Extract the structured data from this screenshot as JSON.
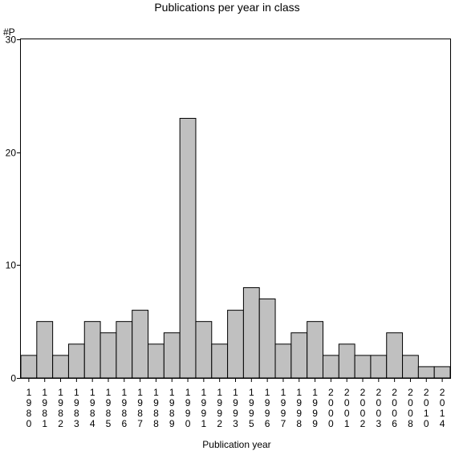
{
  "chart_data": {
    "type": "bar",
    "title": "Publications per year in class",
    "ylabel": "#P",
    "xlabel": "Publication year",
    "ylim": [
      0,
      30
    ],
    "yticks": [
      0,
      10,
      20,
      30
    ],
    "grid": false,
    "categories": [
      "1980",
      "1981",
      "1982",
      "1983",
      "1984",
      "1985",
      "1986",
      "1987",
      "1988",
      "1989",
      "1990",
      "1991",
      "1992",
      "1993",
      "1995",
      "1996",
      "1997",
      "1998",
      "1999",
      "2000",
      "2001",
      "2002",
      "2003",
      "2006",
      "2008",
      "2010",
      "2014"
    ],
    "values": [
      2,
      5,
      2,
      3,
      5,
      4,
      5,
      6,
      3,
      4,
      23,
      5,
      3,
      6,
      8,
      7,
      3,
      4,
      5,
      2,
      3,
      2,
      2,
      4,
      2,
      1,
      1
    ],
    "colors": {
      "bar_fill": "#c0c0c0",
      "bar_stroke": "#000000"
    }
  }
}
